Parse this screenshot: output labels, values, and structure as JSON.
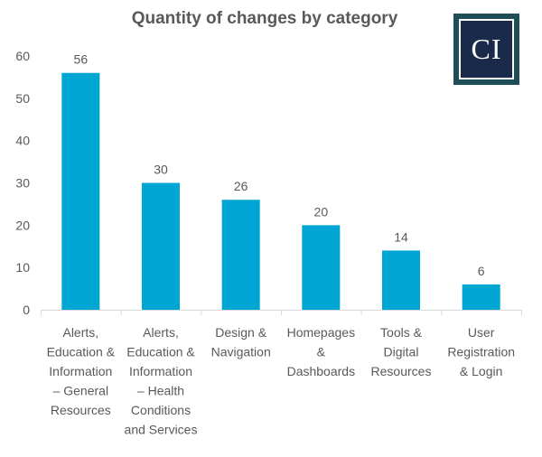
{
  "chart_data": {
    "type": "bar",
    "title": "Quantity of changes by category",
    "categories": [
      [
        "Alerts,",
        "Education &",
        "Information",
        "– General",
        "Resources"
      ],
      [
        "Alerts,",
        "Education &",
        "Information",
        "– Health",
        "Conditions",
        "and Services"
      ],
      [
        "Design &",
        "Navigation"
      ],
      [
        "Homepages",
        "&",
        "Dashboards"
      ],
      [
        "Tools &",
        "Digital",
        "Resources"
      ],
      [
        "User",
        "Registration",
        "& Login"
      ]
    ],
    "values": [
      56,
      30,
      26,
      20,
      14,
      6
    ],
    "ylim": [
      0,
      60
    ],
    "yticks": [
      0,
      10,
      20,
      30,
      40,
      50,
      60
    ],
    "xlabel": "",
    "ylabel": "",
    "bar_color": "#00a6d3",
    "grid": false,
    "legend": "none"
  },
  "logo": {
    "text": "CI",
    "background": "#1f4e57",
    "inner_color": "#1a2a4a"
  }
}
